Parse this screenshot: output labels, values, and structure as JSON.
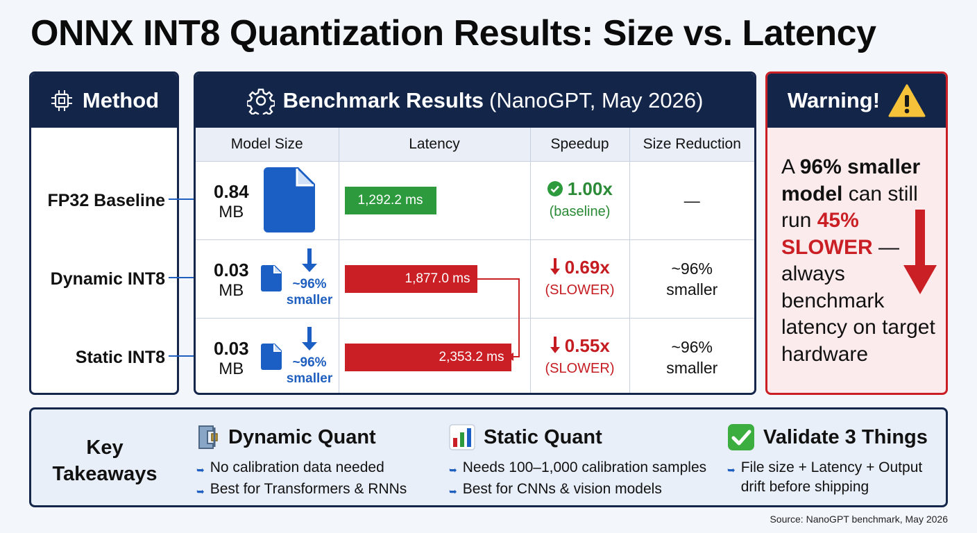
{
  "title": "ONNX INT8 Quantization Results: Size vs. Latency",
  "method_panel": {
    "header": "Method",
    "icon": "cpu-chip-icon",
    "rows": [
      "FP32 Baseline",
      "Dynamic INT8",
      "Static INT8"
    ]
  },
  "benchmark_panel": {
    "header": "Benchmark Results",
    "header_suffix": "(NanoGPT, May 2026)",
    "icon": "gear-icon",
    "columns": [
      "Model Size",
      "Latency",
      "Speedup",
      "Size Reduction"
    ],
    "rows": [
      {
        "method": "FP32 Baseline",
        "size_value": "0.84",
        "size_unit": "MB",
        "size_note": "",
        "latency_ms": 1292.2,
        "latency_label": "1,292.2 ms",
        "speedup": "1.00x",
        "speedup_note": "(baseline)",
        "reduction": "—",
        "reduction_note": ""
      },
      {
        "method": "Dynamic INT8",
        "size_value": "0.03",
        "size_unit": "MB",
        "size_note_1": "~96%",
        "size_note_2": "smaller",
        "latency_ms": 1877.0,
        "latency_label": "1,877.0 ms",
        "speedup": "0.69x",
        "speedup_note": "(SLOWER)",
        "reduction": "~96%",
        "reduction_note": "smaller"
      },
      {
        "method": "Static INT8",
        "size_value": "0.03",
        "size_unit": "MB",
        "size_note_1": "~96%",
        "size_note_2": "smaller",
        "latency_ms": 2353.2,
        "latency_label": "2,353.2 ms",
        "speedup": "0.55x",
        "speedup_note": "(SLOWER)",
        "reduction": "~96%",
        "reduction_note": "smaller"
      }
    ],
    "latency_scale_max_ms": 2353.2
  },
  "warning_panel": {
    "header": "Warning!",
    "icon": "warning-triangle-icon",
    "text_1": "A ",
    "text_2": "96% smaller",
    "text_3": "model",
    "text_4": " can still run ",
    "text_5": "45% SLOWER",
    "text_6": " — always benchmark latency on target hardware"
  },
  "takeaways": {
    "label_1": "Key",
    "label_2": "Takeaways",
    "columns": [
      {
        "icon": "clamp-icon",
        "title": "Dynamic Quant",
        "items": [
          "No calibration data needed",
          "Best for Transformers & RNNs"
        ]
      },
      {
        "icon": "bar-chart-icon",
        "title": "Static Quant",
        "items": [
          "Needs 100–1,000 calibration samples",
          "Best for CNNs & vision models"
        ]
      },
      {
        "icon": "check-box-icon",
        "title": "Validate 3 Things",
        "items": [
          "File size + Latency + Output drift before shipping"
        ]
      }
    ]
  },
  "source": "Source: NanoGPT benchmark, May 2026",
  "colors": {
    "navy": "#13264a",
    "blue": "#1f5fbf",
    "green": "#2d9a3e",
    "red": "#c91f25"
  }
}
